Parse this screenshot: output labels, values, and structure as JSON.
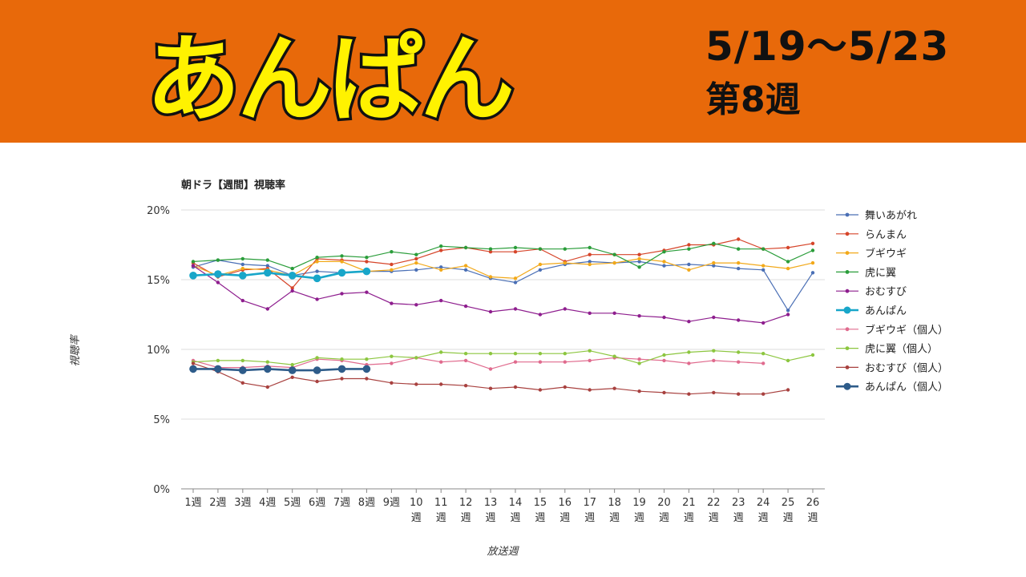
{
  "header": {
    "logo_text": "あんぱん",
    "date_range": "5/19～5/23",
    "week_label": "第8週",
    "colors": {
      "banner": "#e8690a",
      "logo_fill": "#fff200",
      "logo_stroke": "#111111"
    }
  },
  "chart_data": {
    "type": "line",
    "title": "朝ドラ【週間】視聴率",
    "xlabel": "放送週",
    "ylabel": "視聴率",
    "ylim": [
      0,
      20
    ],
    "yticks": [
      "0%",
      "5%",
      "10%",
      "15%",
      "20%"
    ],
    "ytick_values": [
      0,
      5,
      10,
      15,
      20
    ],
    "grid": true,
    "legend_position": "right",
    "categories": [
      "1週",
      "2週",
      "3週",
      "4週",
      "5週",
      "6週",
      "7週",
      "8週",
      "9週",
      "10週",
      "11週",
      "12週",
      "13週",
      "14週",
      "15週",
      "16週",
      "17週",
      "18週",
      "19週",
      "20週",
      "21週",
      "22週",
      "23週",
      "24週",
      "25週",
      "26週"
    ],
    "series": [
      {
        "name": "舞いあがれ",
        "color": "#4a6fb5",
        "emphasis": false,
        "values": [
          15.9,
          16.4,
          16.1,
          16.0,
          15.3,
          15.6,
          15.5,
          15.6,
          15.6,
          15.7,
          15.9,
          15.7,
          15.1,
          14.8,
          15.7,
          16.1,
          16.3,
          16.2,
          16.3,
          16.0,
          16.1,
          16.0,
          15.8,
          15.7,
          12.8,
          15.5
        ]
      },
      {
        "name": "らんまん",
        "color": "#d6452a",
        "emphasis": false,
        "values": [
          16.2,
          15.2,
          15.7,
          15.8,
          14.4,
          16.5,
          16.4,
          16.3,
          16.1,
          16.5,
          17.1,
          17.3,
          17.0,
          17.0,
          17.2,
          16.3,
          16.8,
          16.8,
          16.8,
          17.1,
          17.5,
          17.5,
          17.9,
          17.2,
          17.3,
          17.6
        ]
      },
      {
        "name": "ブギウギ",
        "color": "#f2a91a",
        "emphasis": false,
        "values": [
          16.0,
          15.3,
          15.8,
          15.7,
          15.3,
          16.3,
          16.3,
          15.6,
          15.7,
          16.2,
          15.7,
          16.0,
          15.2,
          15.1,
          16.1,
          16.2,
          16.1,
          16.2,
          16.5,
          16.3,
          15.7,
          16.2,
          16.2,
          16.0,
          15.8,
          16.2
        ]
      },
      {
        "name": "虎に翼",
        "color": "#2a9d3a",
        "emphasis": false,
        "values": [
          16.3,
          16.4,
          16.5,
          16.4,
          15.8,
          16.6,
          16.7,
          16.6,
          17.0,
          16.8,
          17.4,
          17.3,
          17.2,
          17.3,
          17.2,
          17.2,
          17.3,
          16.8,
          15.9,
          17.0,
          17.2,
          17.6,
          17.2,
          17.2,
          16.3,
          17.1
        ]
      },
      {
        "name": "おむすび",
        "color": "#8e1e8e",
        "emphasis": false,
        "values": [
          16.0,
          14.8,
          13.5,
          12.9,
          14.2,
          13.6,
          14.0,
          14.1,
          13.3,
          13.2,
          13.5,
          13.1,
          12.7,
          12.9,
          12.5,
          12.9,
          12.6,
          12.6,
          12.4,
          12.3,
          12.0,
          12.3,
          12.1,
          11.9,
          12.5,
          null
        ]
      },
      {
        "name": "あんぱん",
        "color": "#18a6c9",
        "emphasis": true,
        "values": [
          15.3,
          15.4,
          15.3,
          15.5,
          15.3,
          15.1,
          15.5,
          15.6,
          null,
          null,
          null,
          null,
          null,
          null,
          null,
          null,
          null,
          null,
          null,
          null,
          null,
          null,
          null,
          null,
          null,
          null
        ]
      },
      {
        "name": "ブギウギ（個人）",
        "color": "#e06b8e",
        "emphasis": false,
        "values": [
          9.2,
          8.7,
          8.7,
          8.8,
          8.7,
          9.3,
          9.2,
          8.9,
          9.0,
          9.4,
          9.1,
          9.2,
          8.6,
          9.1,
          9.1,
          9.1,
          9.2,
          9.4,
          9.3,
          9.2,
          9.0,
          9.2,
          9.1,
          9.0,
          null,
          null
        ]
      },
      {
        "name": "虎に翼（個人）",
        "color": "#8cc63f",
        "emphasis": false,
        "values": [
          9.1,
          9.2,
          9.2,
          9.1,
          8.9,
          9.4,
          9.3,
          9.3,
          9.5,
          9.4,
          9.8,
          9.7,
          9.7,
          9.7,
          9.7,
          9.7,
          9.9,
          9.5,
          9.0,
          9.6,
          9.8,
          9.9,
          9.8,
          9.7,
          9.2,
          9.6
        ]
      },
      {
        "name": "おむすび（個人）",
        "color": "#a8413f",
        "emphasis": false,
        "values": [
          9.0,
          8.4,
          7.6,
          7.3,
          8.0,
          7.7,
          7.9,
          7.9,
          7.6,
          7.5,
          7.5,
          7.4,
          7.2,
          7.3,
          7.1,
          7.3,
          7.1,
          7.2,
          7.0,
          6.9,
          6.8,
          6.9,
          6.8,
          6.8,
          7.1,
          null
        ]
      },
      {
        "name": "あんぱん（個人）",
        "color": "#2e5c8a",
        "emphasis": true,
        "values": [
          8.6,
          8.6,
          8.5,
          8.6,
          8.5,
          8.5,
          8.6,
          8.6,
          null,
          null,
          null,
          null,
          null,
          null,
          null,
          null,
          null,
          null,
          null,
          null,
          null,
          null,
          null,
          null,
          null,
          null
        ]
      }
    ]
  }
}
